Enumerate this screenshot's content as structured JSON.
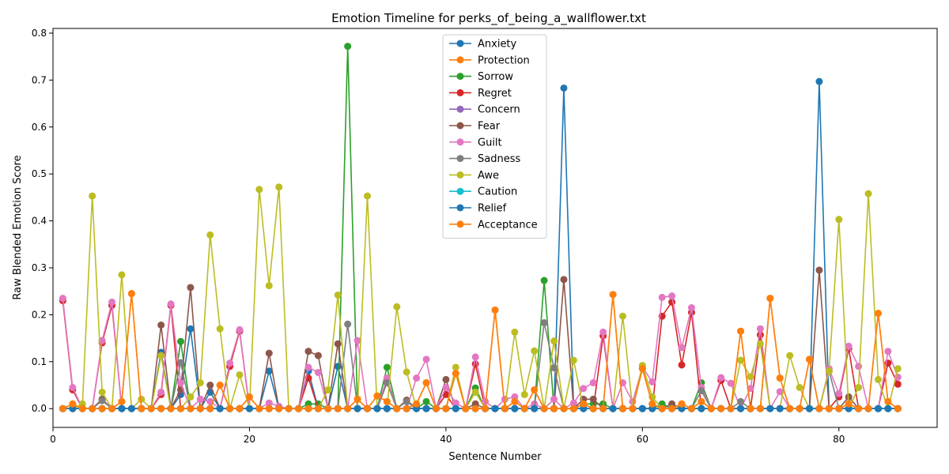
{
  "chart_data": {
    "type": "line",
    "title": "Emotion Timeline for perks_of_being_a_wallflower.txt",
    "xlabel": "Sentence Number",
    "ylabel": "Raw Blended Emotion Score",
    "xlim": [
      0,
      90
    ],
    "ylim": [
      -0.04,
      0.81
    ],
    "xticks": [
      "0",
      "20",
      "40",
      "60",
      "80"
    ],
    "yticks": [
      "0.0",
      "0.1",
      "0.2",
      "0.3",
      "0.4",
      "0.5",
      "0.6",
      "0.7",
      "0.8"
    ],
    "grid": false,
    "legend_position": "top-center",
    "x": [
      1,
      2,
      3,
      4,
      5,
      6,
      7,
      8,
      9,
      10,
      11,
      12,
      13,
      14,
      15,
      16,
      17,
      18,
      19,
      20,
      21,
      22,
      23,
      24,
      25,
      26,
      27,
      28,
      29,
      30,
      31,
      32,
      33,
      34,
      35,
      36,
      37,
      38,
      39,
      40,
      41,
      42,
      43,
      44,
      45,
      46,
      47,
      48,
      49,
      50,
      51,
      52,
      53,
      54,
      55,
      56,
      57,
      58,
      59,
      60,
      61,
      62,
      63,
      64,
      65,
      66,
      67,
      68,
      69,
      70,
      71,
      72,
      73,
      74,
      75,
      76,
      77,
      78,
      79,
      80,
      81,
      82,
      83,
      84,
      85,
      86
    ],
    "series": [
      {
        "name": "Anxiety",
        "color": "#1f77b4",
        "values": [
          0,
          0,
          0,
          0,
          0,
          0,
          0,
          0,
          0,
          0,
          0.12,
          0,
          0.03,
          0.17,
          0,
          0.035,
          0,
          0,
          0,
          0,
          0,
          0.08,
          0,
          0,
          0,
          0.08,
          0,
          0,
          0.09,
          0,
          0,
          0,
          0,
          0,
          0,
          0,
          0,
          0,
          0,
          0,
          0,
          0,
          0,
          0,
          0,
          0,
          0,
          0,
          0,
          0,
          0,
          0.683,
          0,
          0,
          0,
          0,
          0,
          0,
          0,
          0,
          0,
          0,
          0,
          0,
          0,
          0,
          0,
          0,
          0,
          0,
          0,
          0,
          0,
          0,
          0,
          0,
          0,
          0.697,
          0,
          0,
          0,
          0,
          0,
          0,
          0,
          0
        ]
      },
      {
        "name": "Protection",
        "color": "#ff7f0e",
        "values": [
          0,
          0.01,
          0,
          0,
          0,
          0,
          0.015,
          0.245,
          0,
          0,
          0,
          0,
          0,
          0,
          0,
          0,
          0.05,
          0,
          0,
          0.025,
          0,
          0,
          0,
          0,
          0,
          0,
          0,
          0,
          0,
          0,
          0.02,
          0,
          0.027,
          0.015,
          0,
          0,
          0.01,
          0.055,
          0,
          0,
          0.075,
          0,
          0,
          0,
          0.21,
          0,
          0.015,
          0,
          0.04,
          0,
          0,
          0,
          0,
          0.01,
          0,
          0,
          0.243,
          0,
          0,
          0.085,
          0.01,
          0,
          0,
          0.01,
          0,
          0.015,
          0,
          0,
          0,
          0.165,
          0,
          0,
          0.235,
          0.065,
          0,
          0,
          0.105,
          0,
          0,
          0,
          0.01,
          0,
          0,
          0.203,
          0.015,
          0
        ]
      },
      {
        "name": "Sorrow",
        "color": "#2ca02c",
        "values": [
          0,
          0,
          0,
          0,
          0,
          0,
          0,
          0,
          0,
          0,
          0,
          0,
          0.143,
          0,
          0,
          0,
          0,
          0,
          0,
          0,
          0,
          0,
          0,
          0,
          0,
          0.01,
          0.01,
          0,
          0,
          0.772,
          0,
          0,
          0,
          0.088,
          0,
          0,
          0,
          0.015,
          0,
          0,
          0,
          0,
          0.044,
          0,
          0,
          0,
          0,
          0,
          0,
          0.273,
          0,
          0,
          0,
          0.01,
          0.01,
          0.01,
          0,
          0,
          0,
          0,
          0,
          0.01,
          0,
          0,
          0,
          0.055,
          0,
          0,
          0,
          0,
          0,
          0,
          0,
          0,
          0,
          0,
          0,
          0,
          0,
          0,
          0,
          0,
          0,
          0,
          0,
          0
        ]
      },
      {
        "name": "Regret",
        "color": "#d62728",
        "values": [
          0.23,
          0.04,
          0,
          0,
          0.14,
          0.22,
          0,
          0,
          0,
          0,
          0.03,
          0.22,
          0,
          0,
          0,
          0,
          0,
          0.09,
          0.165,
          0,
          0,
          0,
          0,
          0,
          0,
          0.065,
          0,
          0,
          0,
          0,
          0,
          0,
          0,
          0,
          0,
          0,
          0,
          0,
          0,
          0.03,
          0,
          0,
          0.095,
          0,
          0,
          0,
          0,
          0,
          0,
          0,
          0,
          0,
          0,
          0,
          0,
          0.155,
          0,
          0,
          0,
          0,
          0,
          0.197,
          0.227,
          0.093,
          0.205,
          0,
          0,
          0.06,
          0,
          0,
          0,
          0.157,
          0,
          0,
          0,
          0,
          0,
          0,
          0,
          0.025,
          0.128,
          0,
          0,
          0,
          0.097,
          0.052
        ]
      },
      {
        "name": "Concern",
        "color": "#9467bd",
        "values": [
          0,
          0,
          0,
          0,
          0,
          0,
          0,
          0,
          0,
          0,
          0,
          0,
          0,
          0,
          0,
          0,
          0,
          0,
          0,
          0,
          0,
          0,
          0,
          0,
          0,
          0,
          0,
          0,
          0,
          0,
          0,
          0,
          0,
          0,
          0,
          0,
          0,
          0,
          0,
          0,
          0,
          0,
          0,
          0,
          0,
          0,
          0,
          0,
          0,
          0,
          0,
          0,
          0,
          0,
          0,
          0,
          0,
          0,
          0,
          0,
          0,
          0,
          0,
          0,
          0,
          0,
          0,
          0,
          0,
          0,
          0,
          0,
          0,
          0,
          0,
          0,
          0,
          0,
          0,
          0,
          0,
          0,
          0,
          0,
          0,
          0
        ]
      },
      {
        "name": "Fear",
        "color": "#8c564b",
        "values": [
          0,
          0,
          0,
          0,
          0.02,
          0,
          0,
          0,
          0,
          0,
          0.178,
          0,
          0.04,
          0.258,
          0,
          0.05,
          0,
          0,
          0,
          0,
          0,
          0.118,
          0,
          0,
          0,
          0.122,
          0.113,
          0,
          0.138,
          0,
          0,
          0,
          0,
          0.06,
          0,
          0.018,
          0,
          0,
          0,
          0.062,
          0,
          0,
          0.01,
          0,
          0,
          0,
          0,
          0,
          0,
          0,
          0,
          0.275,
          0,
          0.02,
          0.02,
          0,
          0,
          0,
          0,
          0,
          0,
          0,
          0.01,
          0,
          0,
          0,
          0,
          0,
          0,
          0,
          0,
          0,
          0,
          0,
          0,
          0,
          0,
          0.295,
          0,
          0,
          0.025,
          0,
          0,
          0,
          0,
          0
        ]
      },
      {
        "name": "Guilt",
        "color": "#e377c2",
        "values": [
          0.235,
          0.045,
          0,
          0,
          0.145,
          0.227,
          0,
          0,
          0,
          0,
          0.035,
          0.223,
          0.055,
          0,
          0.02,
          0.015,
          0,
          0.097,
          0.168,
          0,
          0,
          0.012,
          0.005,
          0,
          0,
          0.088,
          0.077,
          0,
          0,
          0,
          0.145,
          0,
          0,
          0.065,
          0,
          0,
          0.065,
          0.105,
          0,
          0.045,
          0.012,
          0,
          0.11,
          0.015,
          0,
          0.02,
          0.025,
          0,
          0.01,
          0,
          0.02,
          0,
          0.012,
          0.043,
          0.055,
          0.163,
          0,
          0.055,
          0.015,
          0.088,
          0.057,
          0.237,
          0.24,
          0.13,
          0.215,
          0.045,
          0,
          0.066,
          0.054,
          0,
          0.043,
          0.17,
          0,
          0.036,
          0,
          0,
          0,
          0,
          0.085,
          0.032,
          0.133,
          0.09,
          0,
          0,
          0.122,
          0.067
        ]
      },
      {
        "name": "Sadness",
        "color": "#7f7f7f",
        "values": [
          0,
          0,
          0,
          0,
          0.017,
          0,
          0,
          0,
          0,
          0,
          0,
          0,
          0.098,
          0,
          0,
          0,
          0,
          0,
          0,
          0,
          0,
          0,
          0,
          0,
          0,
          0,
          0,
          0,
          0,
          0.18,
          0,
          0,
          0,
          0.055,
          0,
          0.015,
          0,
          0,
          0,
          0,
          0,
          0,
          0,
          0,
          0,
          0,
          0,
          0,
          0,
          0.183,
          0.087,
          0,
          0,
          0,
          0,
          0,
          0,
          0,
          0,
          0,
          0,
          0,
          0,
          0,
          0,
          0.038,
          0,
          0,
          0,
          0.015,
          0,
          0,
          0,
          0,
          0,
          0,
          0,
          0,
          0.08,
          0,
          0,
          0,
          0,
          0,
          0,
          0
        ]
      },
      {
        "name": "Awe",
        "color": "#bcbd22",
        "values": [
          0,
          0,
          0.01,
          0.453,
          0.035,
          0,
          0.285,
          0,
          0.02,
          0,
          0.113,
          0,
          0,
          0.025,
          0.055,
          0.37,
          0.17,
          0,
          0.072,
          0,
          0.467,
          0.262,
          0.472,
          0,
          0,
          0,
          0,
          0.04,
          0.242,
          0,
          0,
          0.453,
          0,
          0,
          0.217,
          0.078,
          0,
          0,
          0,
          0,
          0.088,
          0,
          0.035,
          0,
          0,
          0,
          0.163,
          0.03,
          0.123,
          0,
          0.144,
          0,
          0.103,
          0,
          0,
          0,
          0,
          0.197,
          0,
          0.092,
          0.025,
          0,
          0,
          0,
          0,
          0,
          0,
          0,
          0,
          0.103,
          0.068,
          0.138,
          0,
          0,
          0.113,
          0.045,
          0,
          0,
          0.08,
          0.403,
          0,
          0.045,
          0.458,
          0.062,
          0,
          0.085
        ]
      },
      {
        "name": "Caution",
        "color": "#17becf",
        "values": [
          0,
          0,
          0,
          0,
          0,
          0,
          0,
          0,
          0,
          0,
          0,
          0,
          0,
          0,
          0,
          0,
          0,
          0,
          0,
          0,
          0,
          0,
          0,
          0,
          0,
          0,
          0,
          0,
          0,
          0,
          0,
          0,
          0,
          0,
          0,
          0,
          0,
          0,
          0,
          0,
          0,
          0,
          0,
          0,
          0,
          0,
          0,
          0,
          0,
          0,
          0,
          0,
          0,
          0,
          0,
          0,
          0,
          0,
          0,
          0,
          0,
          0,
          0,
          0,
          0,
          0,
          0,
          0,
          0,
          0,
          0,
          0,
          0,
          0,
          0,
          0,
          0,
          0,
          0,
          0,
          0,
          0,
          0,
          0,
          0,
          0
        ]
      },
      {
        "name": "Relief",
        "color": "#1f77b4",
        "values": [
          0,
          0,
          0,
          0,
          0,
          0,
          0,
          0,
          0,
          0,
          0,
          0,
          0,
          0,
          0,
          0,
          0,
          0,
          0,
          0,
          0,
          0,
          0,
          0,
          0,
          0,
          0,
          0,
          0,
          0,
          0,
          0,
          0,
          0,
          0,
          0,
          0,
          0,
          0,
          0,
          0,
          0,
          0,
          0,
          0,
          0,
          0,
          0,
          0,
          0,
          0,
          0,
          0,
          0,
          0,
          0,
          0,
          0,
          0,
          0,
          0,
          0,
          0,
          0,
          0,
          0,
          0,
          0,
          0,
          0,
          0,
          0,
          0,
          0,
          0,
          0,
          0,
          0,
          0,
          0,
          0,
          0,
          0,
          0,
          0,
          0
        ]
      },
      {
        "name": "Acceptance",
        "color": "#ff7f0e",
        "values": [
          0,
          0.01,
          0,
          0,
          0,
          0,
          0.015,
          0.245,
          0,
          0,
          0,
          0,
          0,
          0,
          0,
          0,
          0.05,
          0,
          0,
          0.025,
          0,
          0,
          0,
          0,
          0,
          0,
          0,
          0,
          0,
          0,
          0.02,
          0,
          0.027,
          0.015,
          0,
          0,
          0.01,
          0.055,
          0,
          0,
          0.075,
          0,
          0,
          0,
          0.21,
          0,
          0.015,
          0,
          0.04,
          0,
          0,
          0,
          0,
          0.01,
          0,
          0,
          0.243,
          0,
          0,
          0.085,
          0.01,
          0,
          0,
          0.01,
          0,
          0.015,
          0,
          0,
          0,
          0.165,
          0,
          0,
          0.235,
          0.065,
          0,
          0,
          0.105,
          0,
          0,
          0,
          0.01,
          0,
          0,
          0.203,
          0.015,
          0
        ]
      }
    ]
  }
}
